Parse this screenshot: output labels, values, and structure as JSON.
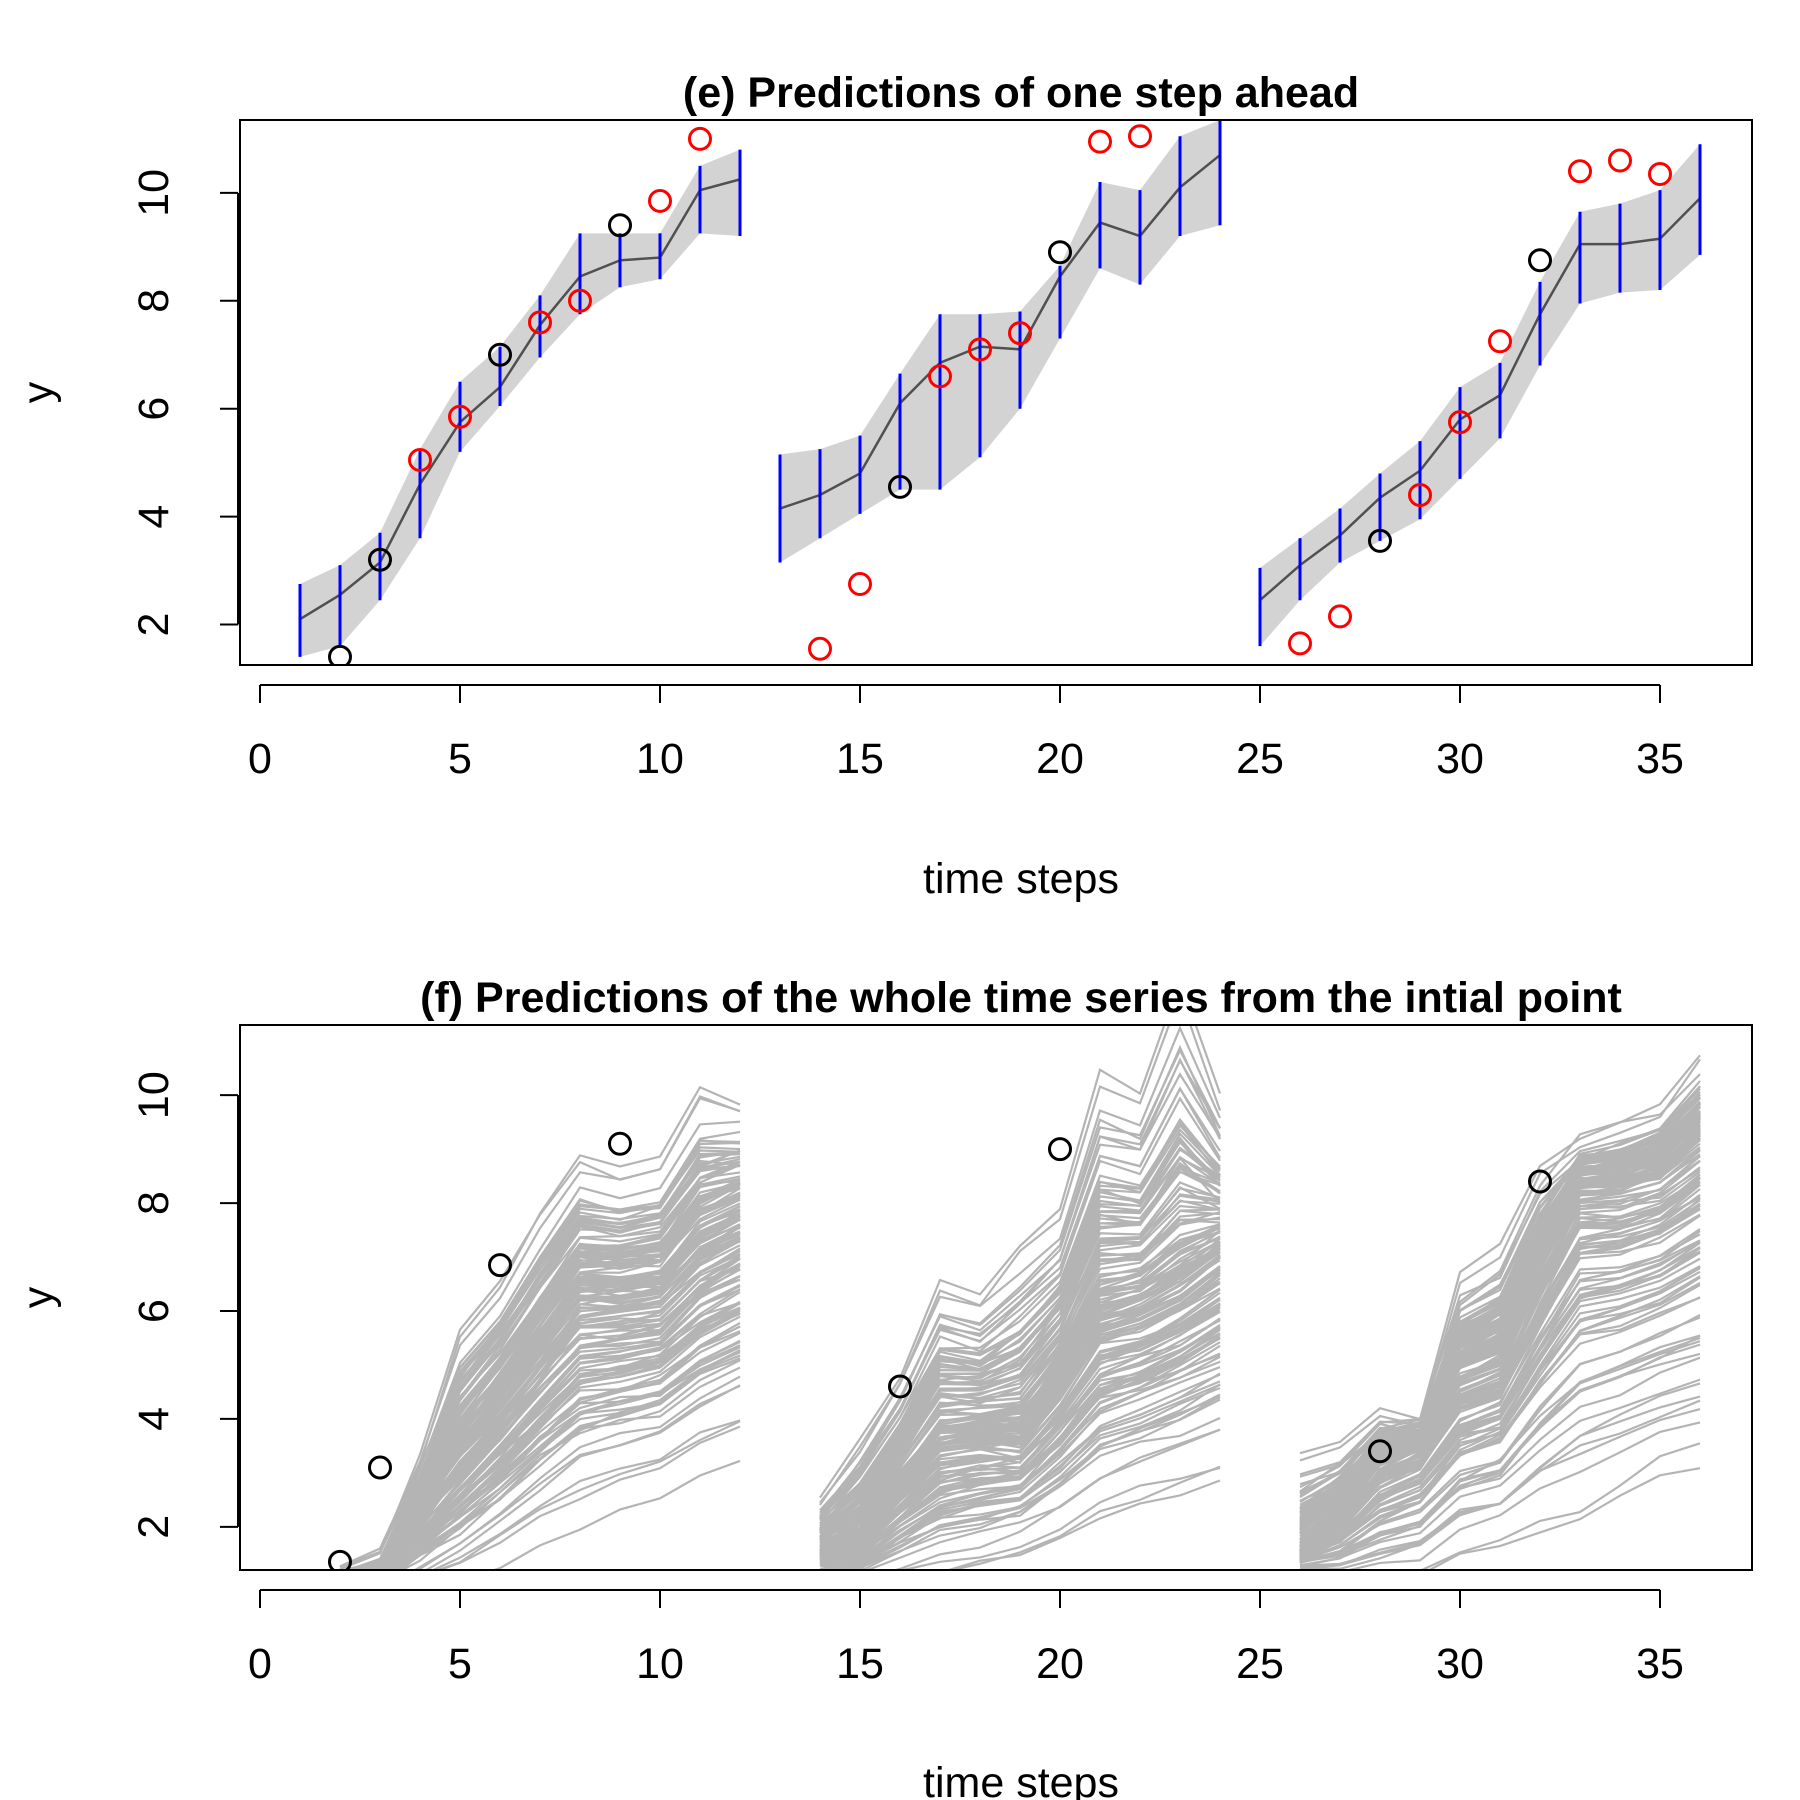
{
  "chart_data": [
    {
      "type": "line",
      "title": "(e) Predictions of one step ahead",
      "xlabel": "time steps",
      "ylabel": "y",
      "xlim": [
        -0.5,
        37.3
      ],
      "ylim": [
        1.25,
        11.35
      ],
      "xticks": [
        0,
        5,
        10,
        15,
        20,
        25,
        30,
        35
      ],
      "yticks": [
        2,
        4,
        6,
        8,
        10
      ],
      "grid": false,
      "colors": {
        "band": "#d3d3d3",
        "mean": "#505050",
        "interval": "#0000ff",
        "observed": "#000000",
        "held_out": "#ff0000"
      },
      "segments": [
        {
          "x": [
            1,
            2,
            3,
            4,
            5,
            6,
            7,
            8,
            9,
            10,
            11,
            12
          ],
          "mean": [
            2.1,
            2.55,
            3.15,
            4.6,
            5.75,
            6.4,
            7.55,
            8.45,
            8.75,
            8.8,
            10.05,
            10.25
          ],
          "lower": [
            1.4,
            1.6,
            2.45,
            3.6,
            5.2,
            6.05,
            6.95,
            7.75,
            8.25,
            8.4,
            9.25,
            9.2
          ],
          "upper": [
            2.75,
            3.1,
            3.7,
            5.25,
            6.5,
            7.15,
            8.1,
            9.25,
            9.25,
            9.25,
            10.5,
            10.8
          ]
        },
        {
          "x": [
            13,
            14,
            15,
            16,
            17,
            18,
            19,
            20,
            21,
            22,
            23,
            24
          ],
          "mean": [
            4.15,
            4.4,
            4.8,
            6.1,
            6.85,
            7.15,
            7.1,
            8.45,
            9.45,
            9.2,
            10.1,
            10.7
          ],
          "lower": [
            3.15,
            3.6,
            4.05,
            4.5,
            4.5,
            5.1,
            6.0,
            7.3,
            8.6,
            8.3,
            9.2,
            9.4
          ],
          "upper": [
            5.15,
            5.25,
            5.5,
            6.65,
            7.75,
            7.75,
            7.8,
            8.65,
            10.2,
            10.05,
            11.05,
            11.35
          ]
        },
        {
          "x": [
            25,
            26,
            27,
            28,
            29,
            30,
            31,
            32,
            33,
            34,
            35,
            36
          ],
          "mean": [
            2.45,
            3.1,
            3.65,
            4.35,
            4.85,
            5.8,
            6.25,
            7.75,
            9.05,
            9.05,
            9.15,
            9.9
          ],
          "lower": [
            1.6,
            2.45,
            3.15,
            3.55,
            3.95,
            4.7,
            5.45,
            6.8,
            7.95,
            8.15,
            8.2,
            8.85
          ],
          "upper": [
            3.05,
            3.6,
            4.15,
            4.8,
            5.4,
            6.4,
            6.85,
            8.35,
            9.65,
            9.8,
            10.05,
            10.9
          ]
        }
      ],
      "observed_points": {
        "x": [
          2,
          3,
          6,
          9,
          16,
          20,
          28,
          32
        ],
        "y": [
          1.4,
          3.2,
          7.0,
          9.4,
          4.55,
          8.9,
          3.55,
          8.75
        ]
      },
      "held_out_points": {
        "x": [
          4,
          5,
          7,
          8,
          10,
          11,
          14,
          15,
          17,
          18,
          19,
          21,
          22,
          26,
          27,
          29,
          30,
          31,
          33,
          34,
          35
        ],
        "y": [
          5.05,
          5.85,
          7.6,
          8.0,
          9.85,
          11.0,
          1.55,
          2.75,
          6.6,
          7.1,
          7.4,
          10.95,
          11.05,
          1.65,
          2.15,
          4.4,
          5.75,
          7.25,
          10.4,
          10.6,
          10.35
        ]
      }
    },
    {
      "type": "line",
      "title": "(f) Predictions of the whole time series from the intial point",
      "xlabel": "time steps",
      "ylabel": "y",
      "xlim": [
        -0.5,
        37.3
      ],
      "ylim": [
        1.2,
        11.3
      ],
      "xticks": [
        0,
        5,
        10,
        15,
        20,
        25,
        30,
        35
      ],
      "yticks": [
        2,
        4,
        6,
        8,
        10
      ],
      "grid": false,
      "colors": {
        "trajectories": "#b4b4b4",
        "observed": "#000000"
      },
      "trajectory_ensembles": [
        {
          "x": [
            2,
            3,
            4,
            5,
            6,
            7,
            8,
            9,
            10,
            11,
            12
          ],
          "median": [
            1.0,
            1.0,
            2.5,
            3.6,
            4.5,
            5.5,
            6.5,
            6.5,
            6.6,
            7.4,
            7.8
          ],
          "spread_low": [
            1.0,
            0.9,
            0.9,
            1.1,
            1.5,
            2.0,
            2.4,
            2.7,
            2.9,
            3.3,
            3.6
          ],
          "spread_high": [
            1.2,
            1.5,
            3.2,
            5.6,
            6.5,
            7.8,
            8.8,
            8.6,
            8.8,
            10.1,
            9.9
          ],
          "trajectory_count": 150
        },
        {
          "x": [
            14,
            15,
            16,
            17,
            18,
            19,
            20,
            21,
            22,
            23,
            24
          ],
          "median": [
            1.5,
            1.8,
            2.8,
            3.7,
            3.8,
            3.8,
            4.8,
            6.0,
            6.2,
            6.6,
            7.2
          ],
          "spread_low": [
            1.3,
            1.0,
            1.1,
            1.2,
            1.4,
            1.6,
            1.9,
            2.3,
            2.6,
            2.8,
            3.0
          ],
          "spread_high": [
            2.5,
            3.6,
            4.8,
            6.6,
            6.3,
            7.2,
            7.8,
            10.4,
            10.0,
            12.0,
            9.9
          ],
          "trajectory_count": 150
        },
        {
          "x": [
            26,
            27,
            28,
            29,
            30,
            31,
            32,
            33,
            34,
            35,
            36
          ],
          "median": [
            1.5,
            2.2,
            3.2,
            3.6,
            4.8,
            5.1,
            6.8,
            8.3,
            8.3,
            8.5,
            9.1
          ],
          "spread_low": [
            1.2,
            1.0,
            1.0,
            1.1,
            1.5,
            1.7,
            2.0,
            2.2,
            2.6,
            3.0,
            3.1
          ],
          "spread_high": [
            3.3,
            3.5,
            4.1,
            3.9,
            6.6,
            7.1,
            8.6,
            9.1,
            9.4,
            9.7,
            10.6
          ],
          "trajectory_count": 150
        }
      ],
      "observed_points": {
        "x": [
          2,
          3,
          6,
          9,
          16,
          20,
          28,
          32
        ],
        "y": [
          1.35,
          3.1,
          6.85,
          9.1,
          4.6,
          9.0,
          3.4,
          8.4
        ]
      }
    }
  ]
}
